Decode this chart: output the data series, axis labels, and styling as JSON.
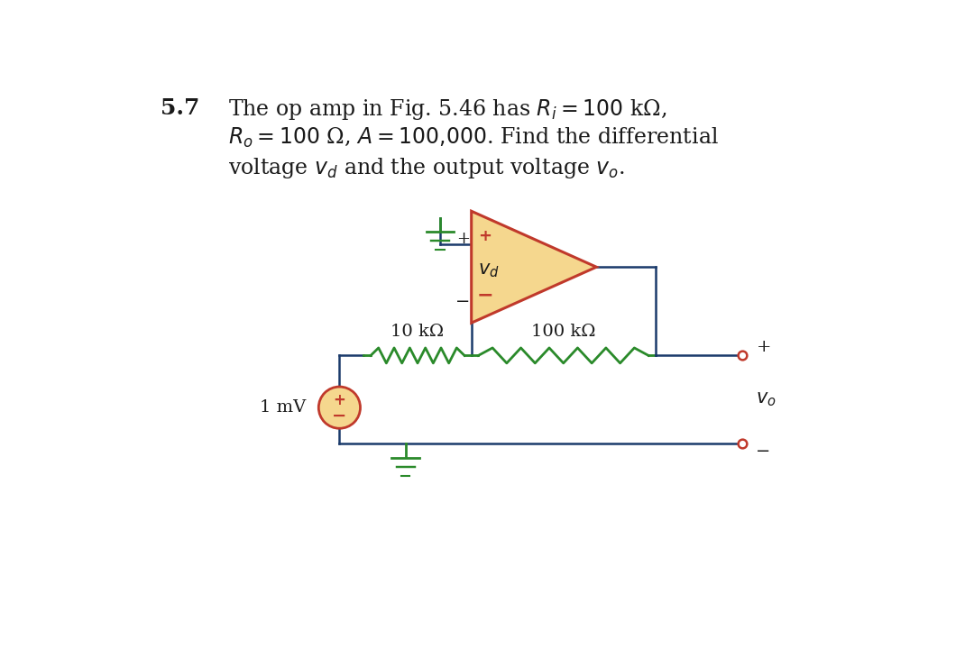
{
  "bg_color": "#ffffff",
  "text_color": "#1a1a1a",
  "wire_color": "#1a3a6b",
  "resistor_color": "#2a8a2a",
  "opamp_fill": "#f5d78e",
  "opamp_border": "#c0392b",
  "source_fill": "#f5d78e",
  "source_border": "#c0392b",
  "ground_color": "#2a8a2a",
  "terminal_color": "#c0392b",
  "title_num": "5.7",
  "title_line1": "The op amp in Fig. 5.46 has $R_i = 100$ kΩ,",
  "title_line2": "$R_o = 100$ Ω, $A = 100{,}000$. Find the differential",
  "title_line3": "voltage $v_d$ and the output voltage $v_o$.",
  "label_10k": "10 kΩ",
  "label_100k": "100 kΩ",
  "label_1mv": "1 mV",
  "label_vd": "$v_d$",
  "label_vo": "$v_o$"
}
